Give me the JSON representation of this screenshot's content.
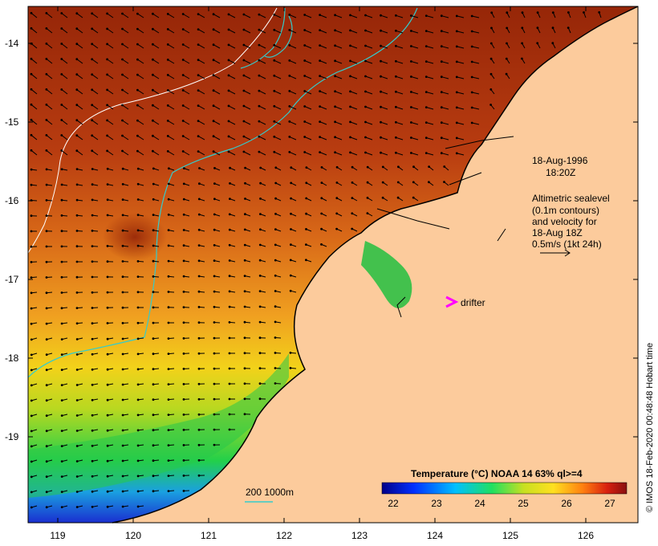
{
  "map": {
    "lat_ticks": [
      "-14",
      "-15",
      "-16",
      "-17",
      "-18",
      "-19"
    ],
    "lon_ticks": [
      "119",
      "120",
      "121",
      "122",
      "123",
      "124",
      "125",
      "126"
    ],
    "date_line": "18-Aug-1996",
    "time_line": "18:20Z",
    "altimetry_note": [
      "Altimetric sealevel",
      "(0.1m contours)",
      "and velocity for",
      "18-Aug 18Z",
      "0.5m/s (1kt 24h)"
    ],
    "drifter_label": "drifter",
    "depth_legend": "200  1000m",
    "colorbar_title": "Temperature (°C) NOAA 14 63% ql>=4",
    "colorbar_ticks": [
      "22",
      "23",
      "24",
      "25",
      "26",
      "27"
    ],
    "credit": "© IMOS 18-Feb-2020 00:48:48 Hobart time",
    "colors": {
      "land": "#fccb9c",
      "drifter": "#ff00ff",
      "isobath_200": "#ffffff",
      "isobath_1000": "#33cccc"
    }
  }
}
